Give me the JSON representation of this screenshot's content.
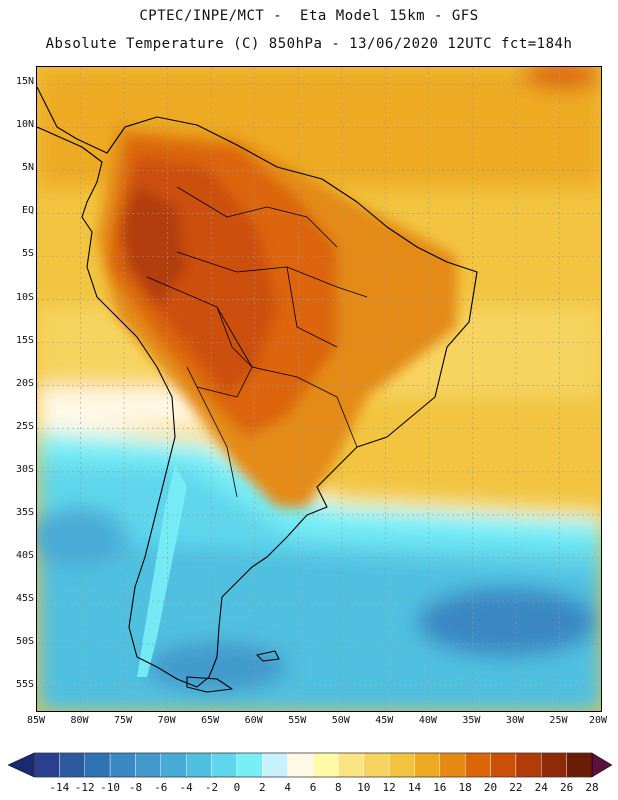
{
  "header": {
    "line1": "CPTEC/INPE/MCT -  Eta Model 15km - GFS",
    "line2": "Absolute Temperature (C) 850hPa - 13/06/2020 12UTC fct=184h"
  },
  "map": {
    "lat_ticks": [
      {
        "value": 15,
        "label": "15N"
      },
      {
        "value": 10,
        "label": "10N"
      },
      {
        "value": 5,
        "label": "5N"
      },
      {
        "value": 0,
        "label": "EQ"
      },
      {
        "value": -5,
        "label": "5S"
      },
      {
        "value": -10,
        "label": "10S"
      },
      {
        "value": -15,
        "label": "15S"
      },
      {
        "value": -20,
        "label": "20S"
      },
      {
        "value": -25,
        "label": "25S"
      },
      {
        "value": -30,
        "label": "30S"
      },
      {
        "value": -35,
        "label": "35S"
      },
      {
        "value": -40,
        "label": "40S"
      },
      {
        "value": -45,
        "label": "45S"
      },
      {
        "value": -50,
        "label": "50S"
      },
      {
        "value": -55,
        "label": "55S"
      }
    ],
    "lon_ticks": [
      {
        "value": -85,
        "label": "85W"
      },
      {
        "value": -80,
        "label": "80W"
      },
      {
        "value": -75,
        "label": "75W"
      },
      {
        "value": -70,
        "label": "70W"
      },
      {
        "value": -65,
        "label": "65W"
      },
      {
        "value": -60,
        "label": "60W"
      },
      {
        "value": -55,
        "label": "55W"
      },
      {
        "value": -50,
        "label": "50W"
      },
      {
        "value": -45,
        "label": "45W"
      },
      {
        "value": -40,
        "label": "40W"
      },
      {
        "value": -35,
        "label": "35W"
      },
      {
        "value": -30,
        "label": "30W"
      },
      {
        "value": -25,
        "label": "25W"
      },
      {
        "value": -20,
        "label": "20W"
      }
    ],
    "extent": {
      "lon_min": -85,
      "lon_max": -20,
      "lat_min": -58,
      "lat_max": 17
    }
  },
  "colorbar": {
    "labels": [
      "-14",
      "-12",
      "-10",
      "-8",
      "-6",
      "-4",
      "-2",
      "0",
      "2",
      "4",
      "6",
      "8",
      "10",
      "12",
      "14",
      "16",
      "18",
      "20",
      "22",
      "24",
      "26",
      "28"
    ],
    "colors": [
      "#2a3f8f",
      "#2c5aa0",
      "#2f72b3",
      "#3a88c4",
      "#4399cc",
      "#48abd6",
      "#4fc0e0",
      "#5fd6ec",
      "#78eef6",
      "#c8f2fb",
      "#fff8e6",
      "#fffaa8",
      "#fbe582",
      "#f7d460",
      "#f2c440",
      "#edaa22",
      "#e48a12",
      "#dc6508",
      "#cc4f08",
      "#b23c08",
      "#8e2a08",
      "#6a1c06"
    ],
    "under_color": "#1a2a70",
    "over_color": "#5a1040"
  }
}
